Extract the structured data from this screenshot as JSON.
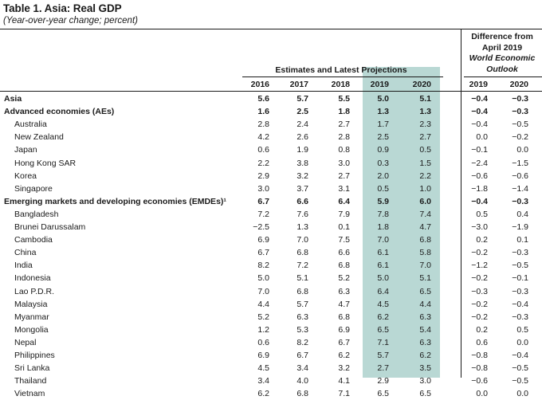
{
  "title": "Table 1. Asia: Real GDP",
  "subtitle": "(Year-over-year change; percent)",
  "difference_header": [
    "Difference from",
    "April 2019",
    "World Economic",
    "Outlook"
  ],
  "estimates_header": "Estimates and Latest Projections",
  "years": [
    "2016",
    "2017",
    "2018",
    "2019",
    "2020"
  ],
  "diff_years": [
    "2019",
    "2020"
  ],
  "rows": [
    {
      "label": "Asia",
      "bold": true,
      "indent": false,
      "values": [
        "5.6",
        "5.7",
        "5.5",
        "5.0",
        "5.1"
      ],
      "diff": [
        "−0.4",
        "−0.3"
      ]
    },
    {
      "label": "Advanced economies (AEs)",
      "bold": true,
      "indent": false,
      "values": [
        "1.6",
        "2.5",
        "1.8",
        "1.3",
        "1.3"
      ],
      "diff": [
        "−0.4",
        "−0.3"
      ]
    },
    {
      "label": "Australia",
      "bold": false,
      "indent": true,
      "values": [
        "2.8",
        "2.4",
        "2.7",
        "1.7",
        "2.3"
      ],
      "diff": [
        "−0.4",
        "−0.5"
      ]
    },
    {
      "label": "New Zealand",
      "bold": false,
      "indent": true,
      "values": [
        "4.2",
        "2.6",
        "2.8",
        "2.5",
        "2.7"
      ],
      "diff": [
        "0.0",
        "−0.2"
      ]
    },
    {
      "label": "Japan",
      "bold": false,
      "indent": true,
      "values": [
        "0.6",
        "1.9",
        "0.8",
        "0.9",
        "0.5"
      ],
      "diff": [
        "−0.1",
        "0.0"
      ]
    },
    {
      "label": "Hong Kong SAR",
      "bold": false,
      "indent": true,
      "values": [
        "2.2",
        "3.8",
        "3.0",
        "0.3",
        "1.5"
      ],
      "diff": [
        "−2.4",
        "−1.5"
      ]
    },
    {
      "label": "Korea",
      "bold": false,
      "indent": true,
      "values": [
        "2.9",
        "3.2",
        "2.7",
        "2.0",
        "2.2"
      ],
      "diff": [
        "−0.6",
        "−0.6"
      ]
    },
    {
      "label": "Singapore",
      "bold": false,
      "indent": true,
      "values": [
        "3.0",
        "3.7",
        "3.1",
        "0.5",
        "1.0"
      ],
      "diff": [
        "−1.8",
        "−1.4"
      ]
    },
    {
      "label": "Emerging markets and developing economies (EMDEs)¹",
      "bold": true,
      "indent": false,
      "values": [
        "6.7",
        "6.6",
        "6.4",
        "5.9",
        "6.0"
      ],
      "diff": [
        "−0.4",
        "−0.3"
      ]
    },
    {
      "label": "Bangladesh",
      "bold": false,
      "indent": true,
      "values": [
        "7.2",
        "7.6",
        "7.9",
        "7.8",
        "7.4"
      ],
      "diff": [
        "0.5",
        "0.4"
      ]
    },
    {
      "label": "Brunei Darussalam",
      "bold": false,
      "indent": true,
      "values": [
        "−2.5",
        "1.3",
        "0.1",
        "1.8",
        "4.7"
      ],
      "diff": [
        "−3.0",
        "−1.9"
      ]
    },
    {
      "label": "Cambodia",
      "bold": false,
      "indent": true,
      "values": [
        "6.9",
        "7.0",
        "7.5",
        "7.0",
        "6.8"
      ],
      "diff": [
        "0.2",
        "0.1"
      ]
    },
    {
      "label": "China",
      "bold": false,
      "indent": true,
      "values": [
        "6.7",
        "6.8",
        "6.6",
        "6.1",
        "5.8"
      ],
      "diff": [
        "−0.2",
        "−0.3"
      ]
    },
    {
      "label": "India",
      "bold": false,
      "indent": true,
      "values": [
        "8.2",
        "7.2",
        "6.8",
        "6.1",
        "7.0"
      ],
      "diff": [
        "−1.2",
        "−0.5"
      ]
    },
    {
      "label": "Indonesia",
      "bold": false,
      "indent": true,
      "values": [
        "5.0",
        "5.1",
        "5.2",
        "5.0",
        "5.1"
      ],
      "diff": [
        "−0.2",
        "−0.1"
      ]
    },
    {
      "label": "Lao P.D.R.",
      "bold": false,
      "indent": true,
      "values": [
        "7.0",
        "6.8",
        "6.3",
        "6.4",
        "6.5"
      ],
      "diff": [
        "−0.3",
        "−0.3"
      ]
    },
    {
      "label": "Malaysia",
      "bold": false,
      "indent": true,
      "values": [
        "4.4",
        "5.7",
        "4.7",
        "4.5",
        "4.4"
      ],
      "diff": [
        "−0.2",
        "−0.4"
      ]
    },
    {
      "label": "Myanmar",
      "bold": false,
      "indent": true,
      "values": [
        "5.2",
        "6.3",
        "6.8",
        "6.2",
        "6.3"
      ],
      "diff": [
        "−0.2",
        "−0.3"
      ]
    },
    {
      "label": "Mongolia",
      "bold": false,
      "indent": true,
      "values": [
        "1.2",
        "5.3",
        "6.9",
        "6.5",
        "5.4"
      ],
      "diff": [
        "0.2",
        "0.5"
      ]
    },
    {
      "label": "Nepal",
      "bold": false,
      "indent": true,
      "values": [
        "0.6",
        "8.2",
        "6.7",
        "7.1",
        "6.3"
      ],
      "diff": [
        "0.6",
        "0.0"
      ]
    },
    {
      "label": "Philippines",
      "bold": false,
      "indent": true,
      "values": [
        "6.9",
        "6.7",
        "6.2",
        "5.7",
        "6.2"
      ],
      "diff": [
        "−0.8",
        "−0.4"
      ]
    },
    {
      "label": "Sri Lanka",
      "bold": false,
      "indent": true,
      "values": [
        "4.5",
        "3.4",
        "3.2",
        "2.7",
        "3.5"
      ],
      "diff": [
        "−0.8",
        "−0.5"
      ]
    },
    {
      "label": "Thailand",
      "bold": false,
      "indent": true,
      "values": [
        "3.4",
        "4.0",
        "4.1",
        "2.9",
        "3.0"
      ],
      "diff": [
        "−0.6",
        "−0.5"
      ]
    },
    {
      "label": "Vietnam",
      "bold": false,
      "indent": true,
      "values": [
        "6.2",
        "6.8",
        "7.1",
        "6.5",
        "6.5"
      ],
      "diff": [
        "0.0",
        "0.0"
      ]
    }
  ]
}
